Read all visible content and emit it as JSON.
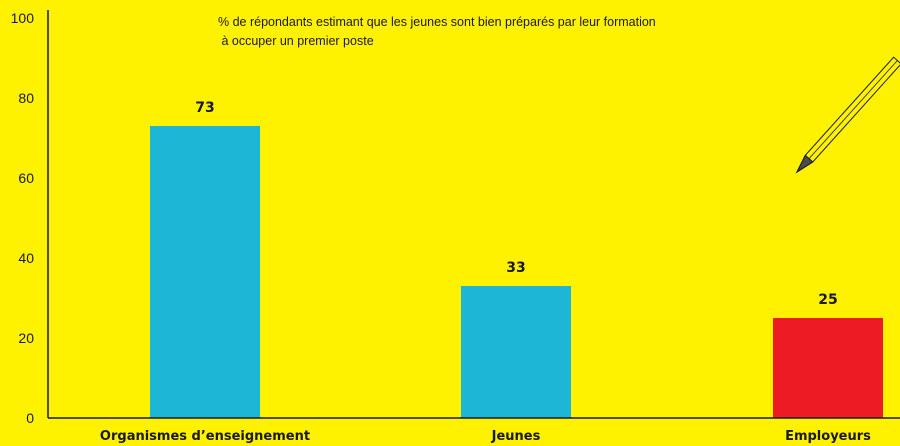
{
  "chart_data": {
    "type": "bar",
    "title_lines": [
      "% de répondants estimant que les jeunes sont bien préparés par leur formation",
      " à occuper un premier poste"
    ],
    "categories": [
      "Organismes d’enseignement",
      "Jeunes",
      "Employeurs"
    ],
    "values": [
      73,
      33,
      25
    ],
    "value_labels": [
      "73",
      "33",
      "25"
    ],
    "bar_colors": [
      "#1EB6D6",
      "#1EB6D6",
      "#ED1C24"
    ],
    "ylim": [
      0,
      100
    ],
    "yticks": [
      "0",
      "20",
      "40",
      "60",
      "80",
      "100"
    ],
    "xlabel": "",
    "ylabel": "",
    "grid": false,
    "background": "#FFF200"
  }
}
